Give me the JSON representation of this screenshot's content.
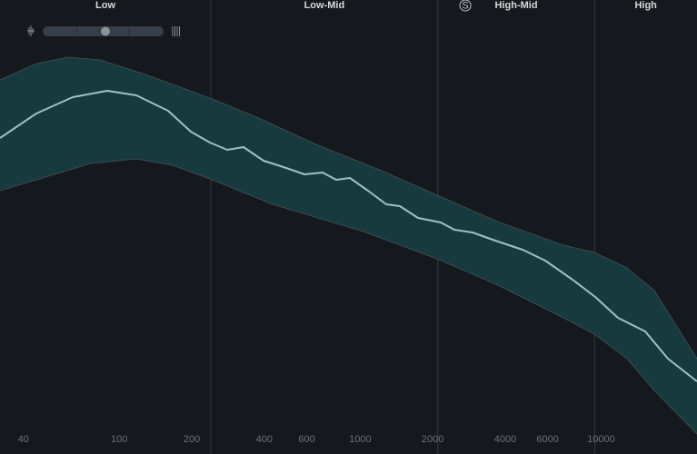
{
  "bands": [
    {
      "label": "Low"
    },
    {
      "label": "Low-Mid"
    },
    {
      "label": "High-Mid"
    },
    {
      "label": "High"
    }
  ],
  "band_edges": [
    240,
    2100,
    9400
  ],
  "solo_button": "S",
  "frequency_axis": {
    "scale": "log",
    "range": [
      32,
      25000
    ],
    "ticks": [
      40,
      100,
      200,
      400,
      600,
      1000,
      2000,
      4000,
      6000,
      10000
    ]
  }
}
